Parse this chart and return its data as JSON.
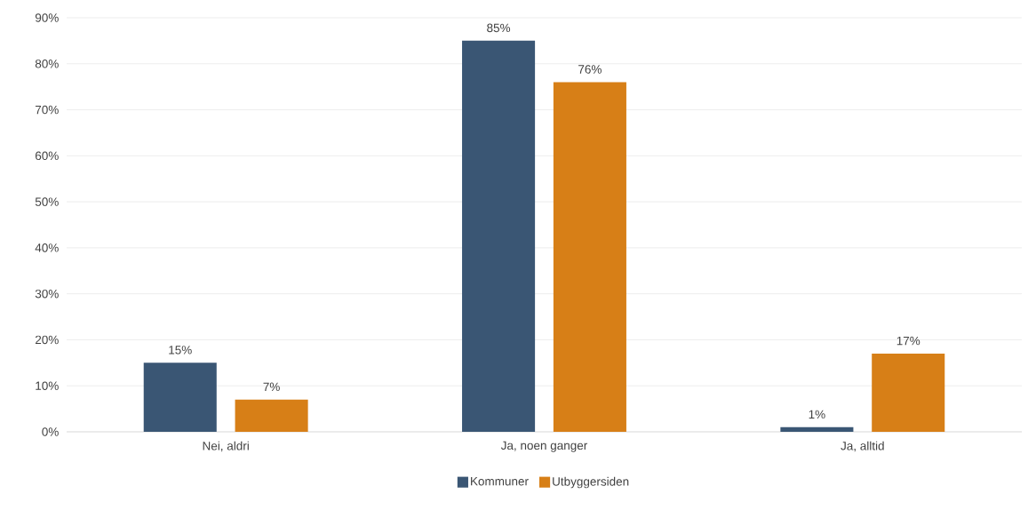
{
  "chart_data": {
    "type": "bar",
    "categories": [
      "Nei, aldri",
      "Ja, noen ganger",
      "Ja, alltid"
    ],
    "series": [
      {
        "name": "Kommuner",
        "color": "#3a5674",
        "values": [
          15,
          85,
          1
        ],
        "value_labels": [
          "15%",
          "85%",
          "1%"
        ]
      },
      {
        "name": "Utbyggersiden",
        "color": "#d77f17",
        "values": [
          7,
          76,
          17
        ],
        "value_labels": [
          "7%",
          "76%",
          "17%"
        ]
      }
    ],
    "ylim": [
      0,
      90
    ],
    "yticks": [
      {
        "value": 0,
        "label": "0%"
      },
      {
        "value": 10,
        "label": "10%"
      },
      {
        "value": 20,
        "label": "20%"
      },
      {
        "value": 30,
        "label": "30%"
      },
      {
        "value": 40,
        "label": "40%"
      },
      {
        "value": 50,
        "label": "50%"
      },
      {
        "value": 60,
        "label": "60%"
      },
      {
        "value": 70,
        "label": "70%"
      },
      {
        "value": 80,
        "label": "80%"
      },
      {
        "value": 90,
        "label": "90%"
      }
    ],
    "grid": "y",
    "legend": "bottom"
  }
}
